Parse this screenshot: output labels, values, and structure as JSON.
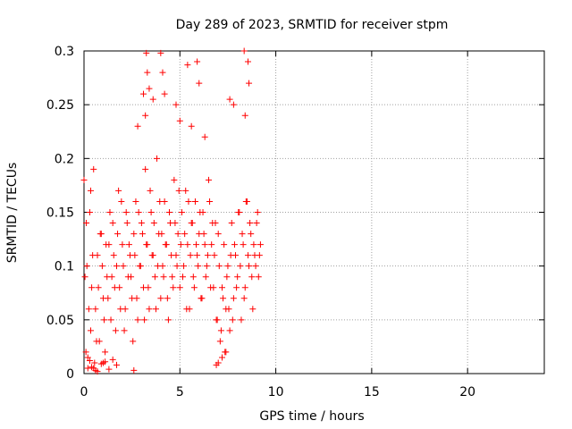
{
  "chart_data": {
    "type": "scatter",
    "title": "Day 289 of 2023, SRMTID for receiver stpm",
    "xlabel": "GPS time / hours",
    "ylabel": "SRMTID / TECUs",
    "xlim": [
      0,
      24
    ],
    "ylim": [
      0,
      0.3
    ],
    "x_ticks": [
      "0",
      "5",
      "10",
      "15",
      "20"
    ],
    "y_ticks": [
      "0",
      "0.05",
      "0.1",
      "0.15",
      "0.2",
      "0.25",
      "0.3"
    ],
    "grid": true,
    "legend": "none",
    "marker": "+",
    "color": "#ff0000",
    "series": [
      {
        "x": [
          0.0,
          0.1,
          0.15,
          0.2,
          0.3,
          0.35,
          0.4,
          0.5,
          0.55,
          0.6,
          0.7,
          0.8,
          0.9,
          1.0,
          1.1,
          1.2,
          1.3,
          1.4,
          1.5,
          1.6,
          1.7,
          1.8,
          1.9,
          2.0,
          2.1,
          2.2,
          2.3,
          2.4,
          2.5,
          2.6,
          2.7,
          2.8,
          2.9,
          3.0,
          3.1,
          3.2,
          3.3,
          3.4,
          3.5,
          3.6,
          3.7,
          3.8,
          3.9,
          4.0,
          4.1,
          4.2,
          4.3,
          4.4,
          4.5,
          4.6,
          4.7,
          4.8,
          4.9,
          5.0,
          5.1,
          5.2,
          5.3,
          5.4,
          5.5,
          5.6,
          5.7,
          5.8,
          5.9,
          6.0,
          6.1,
          6.2,
          6.3,
          6.4,
          6.5,
          6.6,
          6.7,
          6.8,
          6.9,
          7.0,
          7.1,
          7.2,
          7.3,
          7.4,
          7.5,
          7.6,
          7.7,
          7.8,
          7.9,
          8.0,
          8.1,
          8.2,
          8.3,
          8.4,
          8.5,
          8.6,
          8.7,
          8.8,
          8.9,
          9.0,
          9.1,
          9.2,
          0.05,
          0.12,
          0.25,
          0.35,
          0.45,
          0.65,
          0.75,
          0.85,
          0.95,
          1.05,
          1.15,
          1.25,
          1.35,
          1.45,
          1.55,
          1.65,
          1.75,
          1.85,
          1.95,
          2.05,
          2.15,
          2.25,
          2.35,
          2.45,
          2.55,
          2.65,
          2.75,
          2.85,
          2.95,
          3.05,
          3.15,
          3.25,
          3.35,
          3.45,
          3.55,
          3.65,
          3.75,
          3.85,
          3.95,
          4.05,
          4.15,
          4.25,
          4.35,
          4.45,
          4.55,
          4.65,
          4.75,
          4.85,
          4.95,
          5.05,
          5.15,
          5.25,
          5.35,
          5.45,
          5.55,
          5.65,
          5.75,
          5.85,
          5.95,
          6.05,
          6.15,
          6.25,
          6.35,
          6.45,
          6.55,
          6.65,
          6.75,
          6.85,
          6.95,
          7.05,
          7.15,
          7.25,
          7.35,
          7.45,
          7.55,
          7.65,
          7.75,
          7.85,
          7.95,
          8.05,
          8.15,
          8.25,
          8.35,
          8.45,
          8.55,
          8.65,
          8.75,
          8.85,
          8.95,
          9.05,
          9.15,
          3.25,
          3.3,
          4.0,
          4.1,
          5.4,
          5.9,
          6.0,
          8.35,
          8.55,
          3.1,
          3.4,
          3.6,
          4.2,
          4.8,
          7.6,
          7.8,
          8.4,
          8.6,
          2.8,
          3.2,
          5.0,
          5.6,
          6.3,
          0.5,
          0.6,
          0.7,
          1.0,
          1.3,
          1.7,
          0.3,
          0.4,
          0.9,
          1.1,
          0.2,
          1.5,
          2.6,
          7.0,
          7.2,
          7.4,
          6.9
        ],
        "y": [
          0.18,
          0.02,
          0.1,
          0.005,
          0.15,
          0.04,
          0.08,
          0.19,
          0.01,
          0.06,
          0.11,
          0.03,
          0.13,
          0.07,
          0.02,
          0.09,
          0.12,
          0.05,
          0.14,
          0.08,
          0.1,
          0.17,
          0.06,
          0.12,
          0.04,
          0.15,
          0.09,
          0.11,
          0.07,
          0.13,
          0.16,
          0.05,
          0.1,
          0.14,
          0.08,
          0.19,
          0.12,
          0.06,
          0.15,
          0.11,
          0.09,
          0.2,
          0.13,
          0.07,
          0.1,
          0.16,
          0.12,
          0.05,
          0.14,
          0.09,
          0.18,
          0.11,
          0.13,
          0.08,
          0.15,
          0.1,
          0.17,
          0.12,
          0.06,
          0.14,
          0.09,
          0.16,
          0.11,
          0.13,
          0.07,
          0.15,
          0.12,
          0.1,
          0.18,
          0.08,
          0.14,
          0.11,
          0.05,
          0.13,
          0.03,
          0.08,
          0.12,
          0.06,
          0.1,
          0.04,
          0.14,
          0.07,
          0.11,
          0.09,
          0.15,
          0.05,
          0.12,
          0.08,
          0.16,
          0.1,
          0.13,
          0.06,
          0.11,
          0.14,
          0.09,
          0.12,
          0.09,
          0.14,
          0.06,
          0.17,
          0.11,
          0.03,
          0.08,
          0.13,
          0.1,
          0.05,
          0.12,
          0.07,
          0.15,
          0.09,
          0.11,
          0.04,
          0.13,
          0.08,
          0.16,
          0.1,
          0.06,
          0.14,
          0.12,
          0.09,
          0.03,
          0.11,
          0.07,
          0.15,
          0.1,
          0.13,
          0.05,
          0.12,
          0.08,
          0.17,
          0.11,
          0.14,
          0.06,
          0.1,
          0.16,
          0.13,
          0.09,
          0.12,
          0.07,
          0.15,
          0.11,
          0.08,
          0.14,
          0.1,
          0.17,
          0.12,
          0.09,
          0.13,
          0.06,
          0.16,
          0.11,
          0.14,
          0.08,
          0.12,
          0.1,
          0.15,
          0.07,
          0.13,
          0.09,
          0.11,
          0.16,
          0.12,
          0.08,
          0.14,
          0.05,
          0.1,
          0.04,
          0.07,
          0.02,
          0.09,
          0.06,
          0.11,
          0.05,
          0.12,
          0.08,
          0.15,
          0.1,
          0.13,
          0.07,
          0.16,
          0.11,
          0.14,
          0.09,
          0.12,
          0.1,
          0.15,
          0.11,
          0.298,
          0.28,
          0.298,
          0.28,
          0.287,
          0.29,
          0.27,
          0.3,
          0.29,
          0.26,
          0.265,
          0.255,
          0.26,
          0.25,
          0.255,
          0.25,
          0.24,
          0.27,
          0.23,
          0.24,
          0.235,
          0.23,
          0.22,
          0.005,
          0.003,
          0.002,
          0.01,
          0.004,
          0.008,
          0.012,
          0.006,
          0.009,
          0.011,
          0.015,
          0.013,
          0.003,
          0.01,
          0.015,
          0.02,
          0.008
        ]
      }
    ]
  }
}
